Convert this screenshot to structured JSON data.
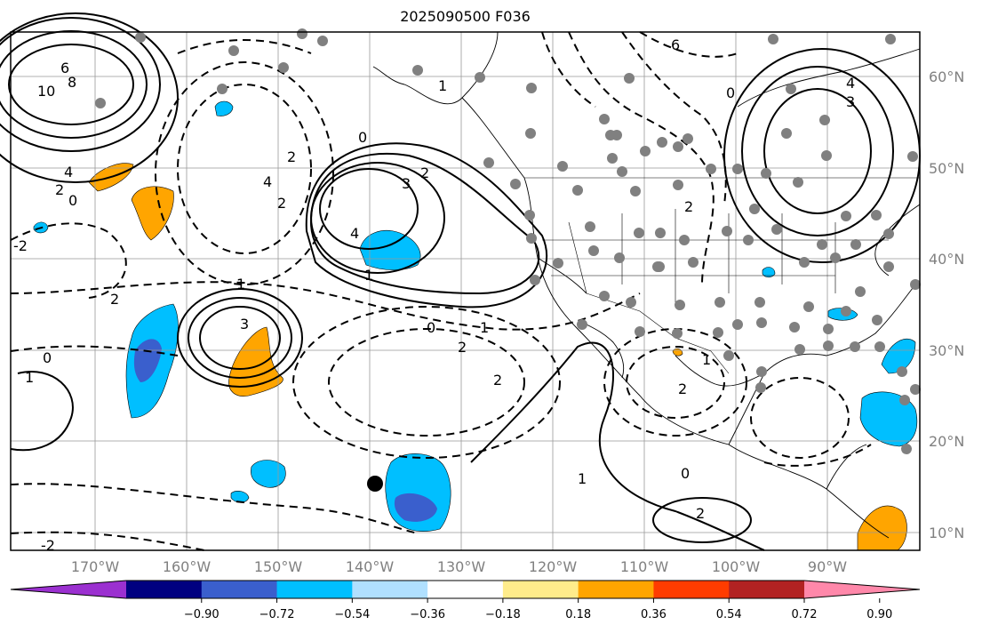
{
  "title": "2025090500 F036",
  "map": {
    "longitude_labels": [
      "170°W",
      "160°W",
      "150°W",
      "140°W",
      "130°W",
      "120°W",
      "110°W",
      "100°W",
      "90°W"
    ],
    "latitude_labels": [
      "60°N",
      "50°N",
      "40°N",
      "30°N",
      "20°N",
      "10°N"
    ],
    "contour_labels": [
      "6",
      "10",
      "8",
      "4",
      "2",
      "0",
      "2",
      "1",
      "3",
      "2",
      "4",
      "2",
      "1",
      "0",
      "2",
      "0",
      "2",
      "-2",
      "1",
      "0",
      "1",
      "6",
      "4",
      "3",
      "4",
      "3",
      "2",
      "1",
      "0",
      "2",
      "2",
      "1",
      "0",
      "2",
      "1",
      "-2"
    ],
    "marker": "filled-circle"
  },
  "colorbar": {
    "ticks": [
      "−0.90",
      "−0.72",
      "−0.54",
      "−0.36",
      "−0.18",
      "0.18",
      "0.36",
      "0.54",
      "0.72",
      "0.90"
    ],
    "colors": [
      "#9b30d0",
      "#000080",
      "#3a5fcd",
      "#00bfff",
      "#b0e0ff",
      "#ffffff",
      "#ffec8b",
      "#ffa500",
      "#ff3c00",
      "#b22222",
      "#ff88aa"
    ]
  }
}
